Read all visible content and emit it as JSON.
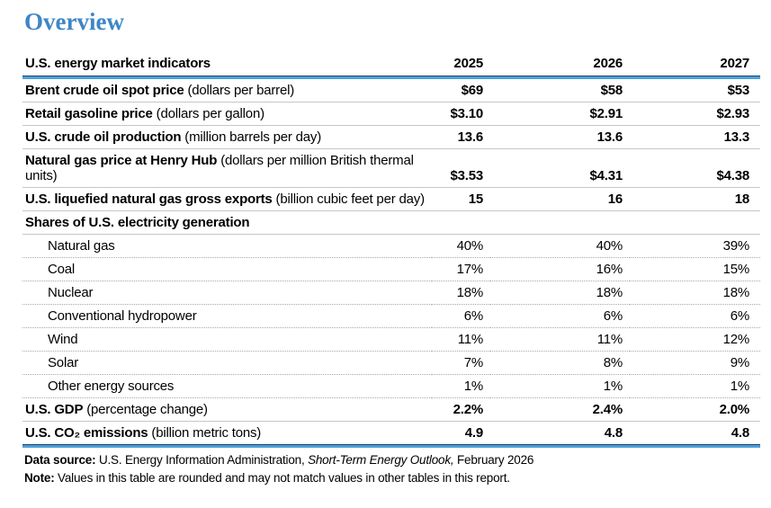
{
  "page": {
    "title": "Overview"
  },
  "table": {
    "header": {
      "label": "U.S. energy market indicators",
      "years": [
        "2025",
        "2026",
        "2027"
      ]
    },
    "rows": [
      {
        "name": "Brent crude oil spot price",
        "unit": " (dollars per barrel)",
        "values": [
          "$69",
          "$58",
          "$53"
        ]
      },
      {
        "name": "Retail gasoline price",
        "unit": " (dollars per gallon)",
        "values": [
          "$3.10",
          "$2.91",
          "$2.93"
        ]
      },
      {
        "name": "U.S. crude oil production",
        "unit": " (million barrels per day)",
        "values": [
          "13.6",
          "13.6",
          "13.3"
        ]
      },
      {
        "name": "Natural gas price at Henry Hub",
        "unit": " (dollars per million British thermal units)",
        "values": [
          "$3.53",
          "$4.31",
          "$4.38"
        ]
      },
      {
        "name": "U.S. liquefied natural gas gross exports",
        "unit": " (billion cubic feet per day)",
        "values": [
          "15",
          "16",
          "18"
        ]
      },
      {
        "name": "Shares of U.S. electricity generation",
        "unit": "",
        "values": [
          "",
          "",
          ""
        ]
      },
      {
        "name": "Natural gas",
        "unit": "",
        "values": [
          "40%",
          "40%",
          "39%"
        ]
      },
      {
        "name": "Coal",
        "unit": "",
        "values": [
          "17%",
          "16%",
          "15%"
        ]
      },
      {
        "name": "Nuclear",
        "unit": "",
        "values": [
          "18%",
          "18%",
          "18%"
        ]
      },
      {
        "name": "Conventional hydropower",
        "unit": "",
        "values": [
          "6%",
          "6%",
          "6%"
        ]
      },
      {
        "name": "Wind",
        "unit": "",
        "values": [
          "11%",
          "11%",
          "12%"
        ]
      },
      {
        "name": "Solar",
        "unit": "",
        "values": [
          "7%",
          "8%",
          "9%"
        ]
      },
      {
        "name": "Other energy sources",
        "unit": "",
        "values": [
          "1%",
          "1%",
          "1%"
        ]
      },
      {
        "name": "U.S. GDP",
        "unit": " (percentage change)",
        "values": [
          "2.2%",
          "2.4%",
          "2.0%"
        ]
      },
      {
        "name": "U.S. CO₂ emissions",
        "unit": " (billion metric tons)",
        "values": [
          "4.9",
          "4.8",
          "4.8"
        ]
      }
    ]
  },
  "footnotes": {
    "source_label": "Data source:",
    "source_text": " U.S. Energy Information Administration, ",
    "source_italic": "Short-Term Energy Outlook,",
    "source_suffix": " February 2026",
    "note_label": "Note:",
    "note_text": " Values in this table are rounded and may not match values in other tables in this report."
  },
  "colors": {
    "accent": "#3E86C6",
    "rule_light": "#4DA0D9",
    "rule_dark": "#21406B",
    "line_solid": "#C6C6C6",
    "line_dotted": "#A8A8A8"
  }
}
